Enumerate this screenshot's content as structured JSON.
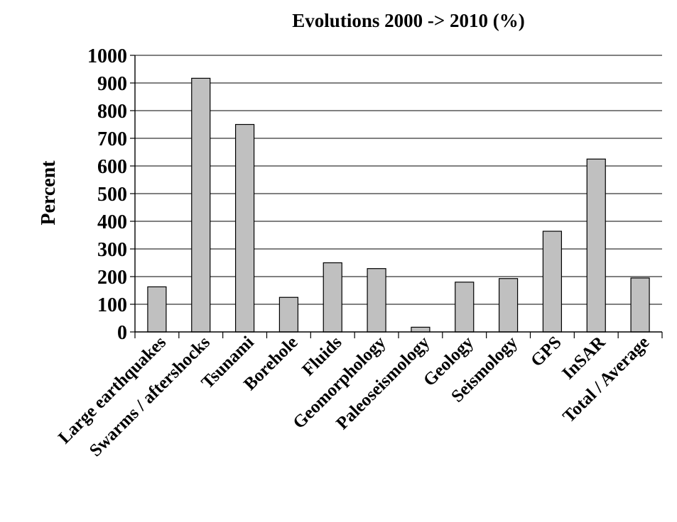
{
  "chart_data": {
    "type": "bar",
    "title": "Evolutions 2000 -> 2010 (%)",
    "xlabel": "",
    "ylabel": "Percent",
    "ylim": [
      0,
      1000
    ],
    "yticks": [
      "0",
      "100",
      "200",
      "300",
      "400",
      "500",
      "600",
      "700",
      "800",
      "900",
      "1000"
    ],
    "grid": true,
    "legend": "none",
    "bar_color": "#c0c0c0",
    "categories": [
      "Large earthquakes",
      "Swarms / aftershocks",
      "Tsunami",
      "Borehole",
      "Fluids",
      "Geomorphology",
      "Paleoseismology",
      "Geology",
      "Seismology",
      "GPS",
      "InSAR",
      "Total / Average"
    ],
    "values": [
      163,
      917,
      750,
      125,
      250,
      229,
      17,
      180,
      193,
      364,
      625,
      195
    ]
  }
}
